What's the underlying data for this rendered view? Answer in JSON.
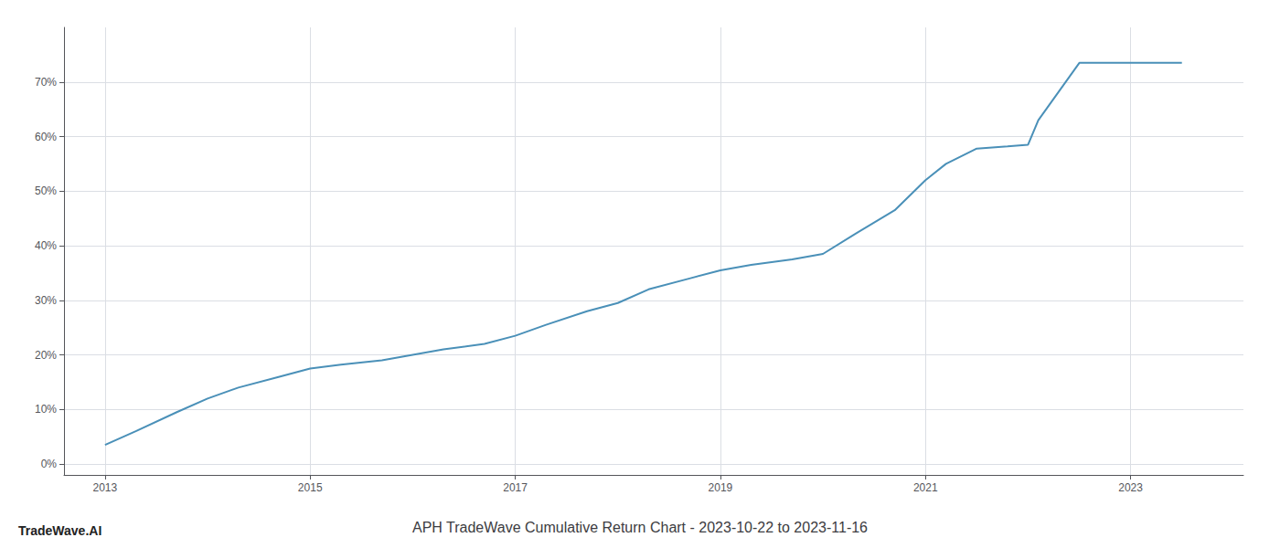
{
  "chart_data": {
    "type": "line",
    "title": "APH TradeWave Cumulative Return Chart - 2023-10-22 to 2023-11-16",
    "annotations": [
      "TradeWave.AI"
    ],
    "x": [
      2013.0,
      2013.3,
      2013.7,
      2014.0,
      2014.3,
      2014.7,
      2015.0,
      2015.3,
      2015.7,
      2016.0,
      2016.3,
      2016.7,
      2017.0,
      2017.3,
      2017.7,
      2018.0,
      2018.3,
      2018.7,
      2019.0,
      2019.3,
      2019.7,
      2020.0,
      2020.3,
      2020.7,
      2021.0,
      2021.2,
      2021.5,
      2021.8,
      2022.0,
      2022.1,
      2022.5,
      2023.0,
      2023.5
    ],
    "values": [
      3.5,
      6.0,
      9.5,
      12.0,
      14.0,
      16.0,
      17.5,
      18.2,
      19.0,
      20.0,
      21.0,
      22.0,
      23.5,
      25.5,
      28.0,
      29.5,
      32.0,
      34.0,
      35.5,
      36.5,
      37.5,
      38.5,
      42.0,
      46.5,
      52.0,
      55.0,
      57.8,
      58.2,
      58.5,
      63.0,
      73.5,
      73.5,
      73.5
    ],
    "color": "#4a90b8",
    "xlim": [
      2012.6,
      2024.1
    ],
    "xticks": [
      2013,
      2015,
      2017,
      2019,
      2021,
      2023
    ],
    "ylim": [
      -2,
      80
    ],
    "yticks": [
      {
        "value": 0,
        "label": "0%"
      },
      {
        "value": 10,
        "label": "10%"
      },
      {
        "value": 20,
        "label": "20%"
      },
      {
        "value": 30,
        "label": "30%"
      },
      {
        "value": 40,
        "label": "40%"
      },
      {
        "value": 50,
        "label": "50%"
      },
      {
        "value": 60,
        "label": "60%"
      },
      {
        "value": 70,
        "label": "70%"
      }
    ],
    "grid": true
  }
}
